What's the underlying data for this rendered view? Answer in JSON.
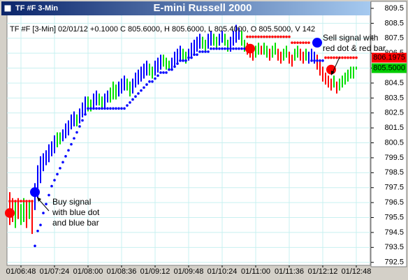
{
  "chart_data": {
    "type": "ohlc",
    "title": "E-mini Russell 2000",
    "symbol": "TF #F 3-Min",
    "info": "TF #F [3-Min] 02/01/12 +0.1000 C 805.6000, H 805.6000, L 805.4000, O 805.5000, V 142",
    "palette": [
      "#0000ff",
      "#00e000",
      "#ff0000"
    ],
    "bars": {
      "high": [
        797.2,
        796.8,
        796.6,
        796.8,
        796.4,
        796.8,
        796.6,
        796.6,
        796.6,
        797.8,
        799.0,
        799.6,
        799.8,
        800.0,
        800.4,
        800.6,
        801.0,
        801.2,
        801.2,
        801.4,
        801.8,
        802.0,
        802.4,
        802.6,
        802.4,
        802.8,
        803.2,
        803.6,
        803.6,
        803.4,
        803.8,
        804.0,
        803.8,
        803.6,
        803.8,
        804.0,
        804.2,
        804.6,
        804.4,
        804.6,
        804.8,
        805.0,
        804.8,
        804.6,
        804.8,
        805.2,
        805.4,
        805.6,
        805.8,
        806.0,
        805.8,
        805.6,
        806.0,
        806.2,
        806.4,
        806.4,
        806.2,
        806.0,
        806.2,
        806.6,
        806.8,
        807.0,
        806.8,
        806.6,
        806.8,
        807.2,
        807.4,
        807.6,
        807.8,
        807.6,
        807.4,
        807.8,
        808.0,
        807.8,
        807.6,
        807.8,
        808.0,
        807.8,
        807.4,
        807.6,
        808.0,
        808.4,
        808.2,
        808.0,
        807.4,
        807.2,
        807.0,
        806.8,
        807.0,
        807.2,
        807.0,
        807.2,
        807.0,
        806.8,
        807.0,
        807.2,
        806.8,
        806.6,
        806.8,
        807.0,
        806.6,
        806.4,
        806.8,
        807.0,
        806.8,
        806.6,
        806.8,
        806.6,
        806.8,
        806.6,
        806.4,
        806.0,
        805.6,
        805.2,
        805.0,
        804.8,
        805.0,
        804.6,
        804.8,
        805.0,
        805.2,
        805.4,
        805.6,
        805.6,
        805.6
      ],
      "low": [
        795.0,
        795.2,
        794.8,
        795.4,
        795.0,
        795.2,
        794.8,
        795.4,
        794.4,
        796.0,
        796.8,
        797.8,
        798.6,
        799.0,
        799.2,
        799.6,
        799.8,
        800.2,
        800.4,
        800.6,
        800.8,
        801.0,
        801.4,
        801.6,
        801.6,
        801.8,
        802.2,
        802.4,
        802.6,
        802.6,
        802.8,
        803.0,
        803.0,
        802.8,
        802.8,
        803.2,
        803.2,
        803.4,
        803.4,
        803.6,
        803.8,
        804.0,
        804.0,
        803.6,
        803.8,
        804.2,
        804.4,
        804.6,
        804.8,
        805.0,
        805.0,
        804.8,
        805.0,
        805.2,
        805.4,
        805.6,
        805.4,
        805.4,
        805.4,
        805.6,
        805.8,
        806.0,
        806.0,
        805.8,
        806.0,
        806.2,
        806.4,
        806.6,
        806.8,
        806.8,
        806.6,
        806.8,
        807.0,
        807.0,
        806.8,
        807.0,
        807.2,
        807.0,
        806.6,
        806.6,
        807.0,
        807.2,
        807.4,
        807.0,
        806.6,
        806.4,
        806.2,
        806.0,
        806.2,
        806.4,
        806.4,
        806.4,
        806.2,
        806.0,
        806.2,
        806.4,
        806.0,
        805.8,
        806.0,
        806.2,
        805.8,
        805.6,
        806.0,
        806.2,
        806.0,
        805.8,
        806.0,
        805.8,
        806.0,
        805.8,
        805.4,
        805.0,
        804.6,
        804.4,
        804.2,
        804.0,
        804.2,
        803.8,
        804.0,
        804.2,
        804.4,
        804.6,
        804.8,
        804.8,
        805.4
      ],
      "colors": [
        2,
        2,
        1,
        2,
        1,
        1,
        2,
        1,
        2,
        0,
        0,
        0,
        0,
        0,
        0,
        0,
        0,
        1,
        1,
        0,
        0,
        0,
        0,
        0,
        1,
        0,
        0,
        0,
        1,
        1,
        0,
        0,
        1,
        1,
        0,
        0,
        1,
        1,
        1,
        0,
        0,
        0,
        1,
        1,
        0,
        0,
        0,
        0,
        0,
        0,
        1,
        1,
        0,
        0,
        0,
        1,
        1,
        1,
        0,
        0,
        0,
        0,
        1,
        1,
        0,
        0,
        0,
        0,
        0,
        1,
        1,
        0,
        0,
        1,
        1,
        0,
        0,
        1,
        1,
        0,
        0,
        0,
        0,
        1,
        1,
        2,
        2,
        2,
        1,
        1,
        2,
        1,
        1,
        2,
        1,
        1,
        2,
        2,
        1,
        1,
        2,
        2,
        1,
        1,
        2,
        2,
        1,
        0,
        0,
        0,
        2,
        2,
        2,
        2,
        2,
        2,
        1,
        2,
        1,
        1,
        1,
        1,
        1,
        1,
        1
      ]
    },
    "stops": {
      "values": [
        796.6,
        796.6,
        796.6,
        796.6,
        796.6,
        796.6,
        796.6,
        796.6,
        796.6,
        793.6,
        794.6,
        795.0,
        795.8,
        796.4,
        797.0,
        797.6,
        798.0,
        798.4,
        798.8,
        799.2,
        799.6,
        800.0,
        800.4,
        800.8,
        801.2,
        801.6,
        802.0,
        802.4,
        802.8,
        802.8,
        802.8,
        802.8,
        802.8,
        802.8,
        802.8,
        802.8,
        802.8,
        802.8,
        802.8,
        802.8,
        802.8,
        802.8,
        803.0,
        803.2,
        803.4,
        803.6,
        803.8,
        804.0,
        804.2,
        804.4,
        804.6,
        804.6,
        804.8,
        805.0,
        805.2,
        805.2,
        805.2,
        805.4,
        805.4,
        805.6,
        805.8,
        806.0,
        806.0,
        806.0,
        806.2,
        806.2,
        806.4,
        806.4,
        806.6,
        806.6,
        806.6,
        806.6,
        806.8,
        806.8,
        806.8,
        806.8,
        806.8,
        806.8,
        806.8,
        806.8,
        806.8,
        806.8,
        806.8,
        806.8,
        806.8,
        807.6,
        807.6,
        807.6,
        807.6,
        807.6,
        807.6,
        807.6,
        807.6,
        807.6,
        807.6,
        807.6,
        807.6,
        807.6,
        807.6,
        807.6,
        807.6,
        807.2,
        807.2,
        807.2,
        807.2,
        807.2,
        807.2,
        807.2,
        806.0,
        806.0,
        806.0,
        806.0,
        806.0,
        806.2,
        806.2,
        806.2,
        806.2,
        806.2,
        806.2,
        806.2,
        806.2,
        806.2,
        806.2,
        806.2,
        806.2
      ],
      "colors": [
        2,
        2,
        2,
        2,
        2,
        2,
        2,
        2,
        2,
        0,
        0,
        0,
        0,
        0,
        0,
        0,
        0,
        0,
        0,
        0,
        0,
        0,
        0,
        0,
        0,
        0,
        0,
        0,
        0,
        0,
        0,
        0,
        0,
        0,
        0,
        0,
        0,
        0,
        0,
        0,
        0,
        0,
        0,
        0,
        0,
        0,
        0,
        0,
        0,
        0,
        0,
        0,
        0,
        0,
        0,
        0,
        0,
        0,
        0,
        0,
        0,
        0,
        0,
        0,
        0,
        0,
        0,
        0,
        0,
        0,
        0,
        0,
        0,
        0,
        0,
        0,
        0,
        0,
        0,
        0,
        0,
        0,
        0,
        0,
        0,
        2,
        2,
        2,
        2,
        2,
        2,
        2,
        2,
        2,
        2,
        2,
        2,
        2,
        2,
        2,
        2,
        2,
        2,
        2,
        2,
        2,
        2,
        2,
        0,
        0,
        0,
        0,
        0,
        2,
        2,
        2,
        2,
        2,
        2,
        2,
        2,
        2,
        2,
        2,
        2
      ]
    },
    "signals": {
      "x": [
        0,
        9,
        86,
        110,
        115
      ],
      "values": [
        795.8,
        797.2,
        806.8,
        807.2,
        805.4
      ],
      "colors": [
        2,
        0,
        2,
        0,
        2
      ]
    },
    "price_labels": [
      {
        "value": 805.5,
        "label": "805.5000",
        "color": "#00cc00"
      },
      {
        "value": 806.1975,
        "label": "806.1975",
        "color": "#ff0000"
      }
    ],
    "annotations": {
      "buy": [
        "Buy signal",
        "with blue dot",
        "and blue bar"
      ],
      "sell": [
        "Sell signal with",
        "red dot & red bar"
      ]
    },
    "xlim": [
      -1,
      129
    ],
    "xticks": [
      {
        "value": 4,
        "label": "01/06:48"
      },
      {
        "value": 16,
        "label": "01/07:24"
      },
      {
        "value": 28,
        "label": "01/08:00"
      },
      {
        "value": 40,
        "label": "01/08:36"
      },
      {
        "value": 52,
        "label": "01/09:12"
      },
      {
        "value": 64,
        "label": "01/09:48"
      },
      {
        "value": 76,
        "label": "01/10:24"
      },
      {
        "value": 88,
        "label": "01/11:00"
      },
      {
        "value": 100,
        "label": "01/11:36"
      },
      {
        "value": 112,
        "label": "01/12:12"
      },
      {
        "value": 124,
        "label": "01/12:48"
      }
    ],
    "ylim": [
      792.3,
      809.9
    ],
    "yticks": [
      809.5,
      808.5,
      807.5,
      806.5,
      805.5,
      804.5,
      803.5,
      802.5,
      801.5,
      800.5,
      799.5,
      798.5,
      797.5,
      796.5,
      795.5,
      794.5,
      793.5,
      792.5
    ],
    "grid": true
  }
}
